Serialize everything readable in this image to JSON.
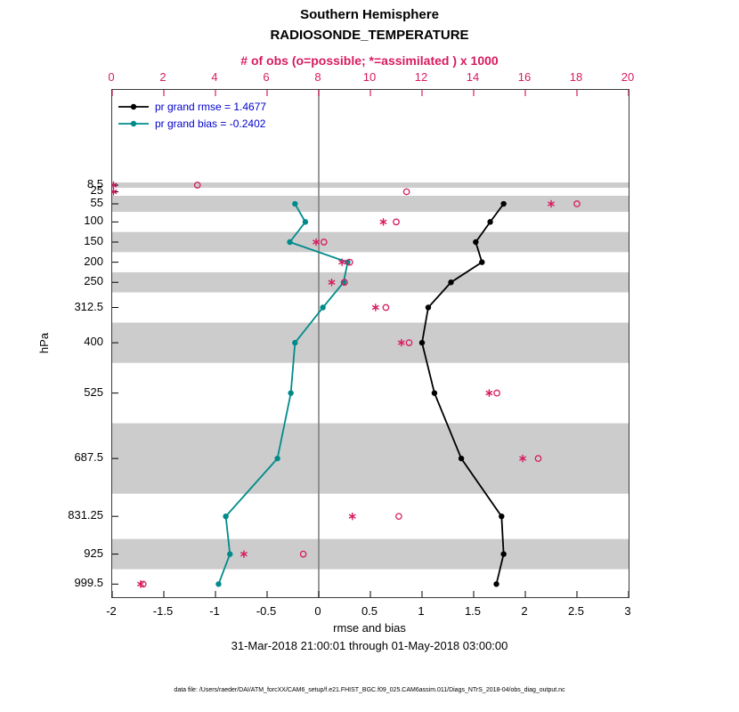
{
  "title": {
    "hemisphere": "Southern Hemisphere",
    "obs_type": "RADIOSONDE_TEMPERATURE"
  },
  "axes": {
    "top": {
      "label": "# of obs (o=possible; *=assimilated ) x 1000",
      "tick_labels": [
        "0",
        "2",
        "4",
        "6",
        "8",
        "10",
        "12",
        "14",
        "16",
        "18",
        "20"
      ],
      "tick_values": [
        0,
        2,
        4,
        6,
        8,
        10,
        12,
        14,
        16,
        18,
        20
      ],
      "range": [
        0,
        20
      ],
      "color": "#d81b60"
    },
    "bottom": {
      "label": "rmse and bias",
      "tick_labels": [
        "-2",
        "-1.5",
        "-1",
        "-0.5",
        "0",
        "0.5",
        "1",
        "1.5",
        "2",
        "2.5",
        "3"
      ],
      "tick_values": [
        -2,
        -1.5,
        -1,
        -0.5,
        0,
        0.5,
        1,
        1.5,
        2,
        2.5,
        3
      ],
      "range": [
        -2,
        3
      ]
    },
    "left": {
      "label": "hPa",
      "tick_labels": [
        "8.5",
        "25",
        "55",
        "100",
        "150",
        "200",
        "250",
        "312.5",
        "400",
        "525",
        "687.5",
        "831.25",
        "925",
        "999.5"
      ],
      "tick_values": [
        8.5,
        25,
        55,
        100,
        150,
        200,
        250,
        312.5,
        400,
        525,
        687.5,
        831.25,
        925,
        999.5
      ],
      "range": [
        -228,
        1032
      ]
    }
  },
  "legend": {
    "text_color": "#0000cc",
    "items": [
      {
        "label": "pr grand rmse = 1.4677",
        "color": "#000000"
      },
      {
        "label": "pr grand bias = -0.2402",
        "color": "#008b8b"
      }
    ]
  },
  "footer": {
    "date_range": "31-Mar-2018 21:00:01 through 01-May-2018 03:00:00",
    "data_file": "data file: /Users/raeder/DAI/ATM_forcXX/CAM6_setup/f.e21.FHIST_BGC.f09_025.CAM6assim.011/Diags_NTrS_2018-04/obs_diag_output.nc"
  },
  "chart_data": {
    "type": "line",
    "orientation": "vertical-pressure-profile",
    "profile_levels_hPa": [
      8.5,
      25,
      55,
      100,
      150,
      200,
      250,
      312.5,
      400,
      525,
      687.5,
      831.25,
      925,
      999.5
    ],
    "xlim_rmse_bias": [
      -2,
      3
    ],
    "xlim_obs_count_x1000": [
      0,
      20
    ],
    "ylim_hPa": [
      -228,
      1032
    ],
    "zero_line_x": 0,
    "zero_line_color": "#808080",
    "band_color": "#cccccc",
    "shaded_bands_hPa": [
      [
        2,
        15
      ],
      [
        35,
        75
      ],
      [
        125,
        175
      ],
      [
        225,
        275
      ],
      [
        350,
        450
      ],
      [
        600,
        775
      ],
      [
        887.5,
        962.5
      ]
    ],
    "series": [
      {
        "name": "pr grand rmse",
        "axis": "bottom",
        "marker": "dot",
        "line": true,
        "color": "#000000",
        "values": [
          null,
          null,
          1.79,
          1.66,
          1.52,
          1.58,
          1.28,
          1.06,
          1.0,
          1.12,
          1.38,
          1.77,
          1.79,
          1.72
        ]
      },
      {
        "name": "pr grand bias",
        "axis": "bottom",
        "marker": "dot",
        "line": true,
        "color": "#008b8b",
        "values": [
          null,
          null,
          -0.23,
          -0.13,
          -0.28,
          0.28,
          0.24,
          0.04,
          -0.23,
          -0.27,
          -0.4,
          -0.9,
          -0.86,
          -0.97
        ]
      },
      {
        "name": "possible obs x1000",
        "axis": "top",
        "marker": "circle",
        "line": false,
        "color": "#d81b60",
        "values": [
          3.3,
          11.4,
          18.0,
          11.0,
          8.2,
          9.2,
          9.0,
          10.6,
          11.5,
          14.9,
          16.5,
          11.1,
          7.4,
          1.2
        ]
      },
      {
        "name": "assimilated obs x1000",
        "axis": "top",
        "marker": "asterisk",
        "line": false,
        "color": "#d81b60",
        "values": [
          0.05,
          0.05,
          17.0,
          10.5,
          7.9,
          8.9,
          8.5,
          10.2,
          11.2,
          14.6,
          15.9,
          9.3,
          5.1,
          1.1
        ]
      }
    ]
  }
}
